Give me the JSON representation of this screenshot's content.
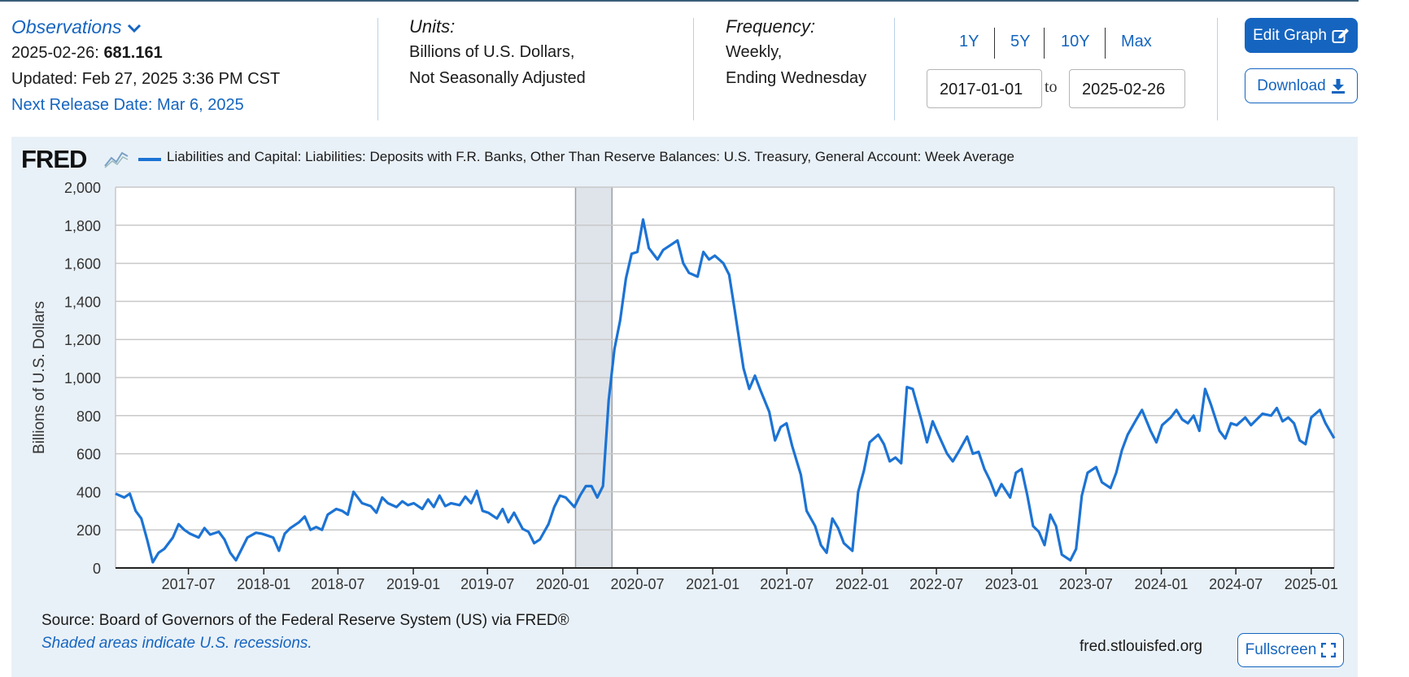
{
  "header": {
    "observations_label": "Observations",
    "obs_date": "2025-02-26:",
    "obs_value": "681.161",
    "updated": "Updated: Feb 27, 2025 3:36 PM CST",
    "next_release": "Next Release Date: Mar 6, 2025",
    "units_label": "Units:",
    "units_line1": "Billions of U.S. Dollars,",
    "units_line2": "Not Seasonally Adjusted",
    "frequency_label": "Frequency:",
    "frequency_line1": "Weekly,",
    "frequency_line2": "Ending Wednesday"
  },
  "range": {
    "buttons": [
      "1Y",
      "5Y",
      "10Y",
      "Max"
    ],
    "start": "2017-01-01",
    "end": "2025-02-26",
    "to_label": "to"
  },
  "actions": {
    "edit_graph": "Edit Graph",
    "download": "Download",
    "fullscreen": "Fullscreen"
  },
  "brand": {
    "logo": "FRED",
    "url": "fred.stlouisfed.org"
  },
  "footer": {
    "source": "Source: Board of Governors of the Federal Reserve System (US) via FRED®",
    "shaded_note": "Shaded areas indicate U.S. recessions."
  },
  "colors": {
    "line": "#1c73d4",
    "link": "#1565c0",
    "panel_bg": "#e9f1f8",
    "recession": "#dfe4ea"
  },
  "chart_data": {
    "type": "line",
    "title": "",
    "xlabel": "",
    "ylabel": "Billions of U.S. Dollars",
    "legend": "Liabilities and Capital: Liabilities: Deposits with F.R. Banks, Other Than Reserve Balances: U.S. Treasury, General Account: Week Average",
    "ylim": [
      0,
      2000
    ],
    "yticks": [
      0,
      200,
      400,
      600,
      800,
      1000,
      1200,
      1400,
      1600,
      1800,
      2000
    ],
    "ytick_labels": [
      "0",
      "200",
      "400",
      "600",
      "800",
      "1,000",
      "1,200",
      "1,400",
      "1,600",
      "1,800",
      "2,000"
    ],
    "xlim": [
      "2017-01-04",
      "2025-02-26"
    ],
    "xticks": [
      "2017-07-01",
      "2018-01-01",
      "2018-07-01",
      "2019-01-01",
      "2019-07-01",
      "2020-01-01",
      "2020-07-01",
      "2021-01-01",
      "2021-07-01",
      "2022-01-01",
      "2022-07-01",
      "2023-01-01",
      "2023-07-01",
      "2024-01-01",
      "2024-07-01",
      "2025-01-01"
    ],
    "xtick_labels": [
      "2017-07",
      "2018-01",
      "2018-07",
      "2019-01",
      "2019-07",
      "2020-01",
      "2020-07",
      "2021-01",
      "2021-07",
      "2022-01",
      "2022-07",
      "2023-01",
      "2023-07",
      "2024-01",
      "2024-07",
      "2025-01"
    ],
    "grid": true,
    "recessions": [
      [
        "2020-02-01",
        "2020-04-30"
      ]
    ],
    "series": [
      {
        "name": "Liabilities and Capital: Liabilities: Deposits with F.R. Banks, Other Than Reserve Balances: U.S. Treasury, General Account: Week Average",
        "points": [
          [
            "2017-01-04",
            390
          ],
          [
            "2017-01-25",
            370
          ],
          [
            "2017-02-08",
            390
          ],
          [
            "2017-02-22",
            300
          ],
          [
            "2017-03-08",
            260
          ],
          [
            "2017-03-22",
            150
          ],
          [
            "2017-04-05",
            30
          ],
          [
            "2017-04-19",
            80
          ],
          [
            "2017-05-03",
            100
          ],
          [
            "2017-05-24",
            160
          ],
          [
            "2017-06-07",
            230
          ],
          [
            "2017-06-21",
            200
          ],
          [
            "2017-07-05",
            180
          ],
          [
            "2017-07-26",
            160
          ],
          [
            "2017-08-09",
            210
          ],
          [
            "2017-08-23",
            175
          ],
          [
            "2017-09-13",
            190
          ],
          [
            "2017-09-27",
            150
          ],
          [
            "2017-10-11",
            80
          ],
          [
            "2017-10-25",
            40
          ],
          [
            "2017-11-08",
            100
          ],
          [
            "2017-11-22",
            160
          ],
          [
            "2017-12-13",
            185
          ],
          [
            "2017-12-27",
            180
          ],
          [
            "2018-01-10",
            170
          ],
          [
            "2018-01-24",
            160
          ],
          [
            "2018-02-07",
            90
          ],
          [
            "2018-02-21",
            180
          ],
          [
            "2018-03-07",
            210
          ],
          [
            "2018-03-28",
            240
          ],
          [
            "2018-04-11",
            270
          ],
          [
            "2018-04-25",
            200
          ],
          [
            "2018-05-09",
            215
          ],
          [
            "2018-05-23",
            200
          ],
          [
            "2018-06-06",
            280
          ],
          [
            "2018-06-27",
            310
          ],
          [
            "2018-07-11",
            300
          ],
          [
            "2018-07-25",
            280
          ],
          [
            "2018-08-08",
            400
          ],
          [
            "2018-08-29",
            340
          ],
          [
            "2018-09-19",
            325
          ],
          [
            "2018-10-03",
            290
          ],
          [
            "2018-10-17",
            370
          ],
          [
            "2018-10-31",
            340
          ],
          [
            "2018-11-21",
            320
          ],
          [
            "2018-12-05",
            350
          ],
          [
            "2018-12-19",
            330
          ],
          [
            "2019-01-02",
            340
          ],
          [
            "2019-01-23",
            310
          ],
          [
            "2019-02-06",
            360
          ],
          [
            "2019-02-20",
            320
          ],
          [
            "2019-03-06",
            380
          ],
          [
            "2019-03-20",
            325
          ],
          [
            "2019-04-03",
            340
          ],
          [
            "2019-04-24",
            330
          ],
          [
            "2019-05-08",
            375
          ],
          [
            "2019-05-22",
            340
          ],
          [
            "2019-06-05",
            405
          ],
          [
            "2019-06-19",
            300
          ],
          [
            "2019-07-03",
            290
          ],
          [
            "2019-07-24",
            260
          ],
          [
            "2019-08-07",
            310
          ],
          [
            "2019-08-21",
            240
          ],
          [
            "2019-09-04",
            290
          ],
          [
            "2019-09-25",
            205
          ],
          [
            "2019-10-09",
            190
          ],
          [
            "2019-10-23",
            130
          ],
          [
            "2019-11-06",
            150
          ],
          [
            "2019-11-27",
            230
          ],
          [
            "2019-12-11",
            320
          ],
          [
            "2019-12-25",
            380
          ],
          [
            "2020-01-08",
            370
          ],
          [
            "2020-01-29",
            320
          ],
          [
            "2020-02-12",
            380
          ],
          [
            "2020-02-26",
            430
          ],
          [
            "2020-03-11",
            430
          ],
          [
            "2020-03-25",
            370
          ],
          [
            "2020-04-08",
            430
          ],
          [
            "2020-04-22",
            880
          ],
          [
            "2020-05-06",
            1150
          ],
          [
            "2020-05-20",
            1300
          ],
          [
            "2020-06-03",
            1520
          ],
          [
            "2020-06-17",
            1650
          ],
          [
            "2020-07-01",
            1660
          ],
          [
            "2020-07-15",
            1830
          ],
          [
            "2020-07-29",
            1680
          ],
          [
            "2020-08-19",
            1620
          ],
          [
            "2020-09-02",
            1670
          ],
          [
            "2020-09-23",
            1700
          ],
          [
            "2020-10-07",
            1720
          ],
          [
            "2020-10-21",
            1600
          ],
          [
            "2020-11-04",
            1550
          ],
          [
            "2020-11-25",
            1530
          ],
          [
            "2020-12-09",
            1660
          ],
          [
            "2020-12-23",
            1620
          ],
          [
            "2021-01-06",
            1640
          ],
          [
            "2021-01-27",
            1600
          ],
          [
            "2021-02-10",
            1540
          ],
          [
            "2021-02-24",
            1350
          ],
          [
            "2021-03-17",
            1050
          ],
          [
            "2021-03-31",
            940
          ],
          [
            "2021-04-14",
            1010
          ],
          [
            "2021-04-28",
            930
          ],
          [
            "2021-05-19",
            820
          ],
          [
            "2021-06-02",
            670
          ],
          [
            "2021-06-16",
            740
          ],
          [
            "2021-06-30",
            760
          ],
          [
            "2021-07-14",
            640
          ],
          [
            "2021-08-04",
            490
          ],
          [
            "2021-08-18",
            300
          ],
          [
            "2021-09-08",
            220
          ],
          [
            "2021-09-22",
            120
          ],
          [
            "2021-10-06",
            80
          ],
          [
            "2021-10-20",
            260
          ],
          [
            "2021-11-03",
            210
          ],
          [
            "2021-11-17",
            130
          ],
          [
            "2021-12-08",
            90
          ],
          [
            "2021-12-22",
            400
          ],
          [
            "2022-01-05",
            510
          ],
          [
            "2022-01-19",
            660
          ],
          [
            "2022-02-09",
            700
          ],
          [
            "2022-02-23",
            650
          ],
          [
            "2022-03-09",
            560
          ],
          [
            "2022-03-23",
            580
          ],
          [
            "2022-04-06",
            550
          ],
          [
            "2022-04-20",
            950
          ],
          [
            "2022-05-04",
            940
          ],
          [
            "2022-05-25",
            780
          ],
          [
            "2022-06-08",
            660
          ],
          [
            "2022-06-22",
            770
          ],
          [
            "2022-07-06",
            700
          ],
          [
            "2022-07-27",
            600
          ],
          [
            "2022-08-10",
            560
          ],
          [
            "2022-08-24",
            610
          ],
          [
            "2022-09-14",
            690
          ],
          [
            "2022-09-28",
            600
          ],
          [
            "2022-10-12",
            610
          ],
          [
            "2022-10-26",
            520
          ],
          [
            "2022-11-09",
            460
          ],
          [
            "2022-11-23",
            380
          ],
          [
            "2022-12-07",
            440
          ],
          [
            "2022-12-28",
            370
          ],
          [
            "2023-01-11",
            500
          ],
          [
            "2023-01-25",
            520
          ],
          [
            "2023-02-08",
            380
          ],
          [
            "2023-02-22",
            220
          ],
          [
            "2023-03-08",
            190
          ],
          [
            "2023-03-22",
            120
          ],
          [
            "2023-04-05",
            280
          ],
          [
            "2023-04-19",
            220
          ],
          [
            "2023-05-03",
            70
          ],
          [
            "2023-05-24",
            40
          ],
          [
            "2023-06-07",
            100
          ],
          [
            "2023-06-21",
            380
          ],
          [
            "2023-07-05",
            500
          ],
          [
            "2023-07-26",
            530
          ],
          [
            "2023-08-09",
            450
          ],
          [
            "2023-08-30",
            420
          ],
          [
            "2023-09-13",
            500
          ],
          [
            "2023-09-27",
            620
          ],
          [
            "2023-10-11",
            700
          ],
          [
            "2023-11-01",
            780
          ],
          [
            "2023-11-15",
            830
          ],
          [
            "2023-12-06",
            720
          ],
          [
            "2023-12-20",
            660
          ],
          [
            "2024-01-03",
            750
          ],
          [
            "2024-01-24",
            790
          ],
          [
            "2024-02-07",
            830
          ],
          [
            "2024-02-21",
            780
          ],
          [
            "2024-03-06",
            760
          ],
          [
            "2024-03-20",
            800
          ],
          [
            "2024-04-03",
            720
          ],
          [
            "2024-04-17",
            940
          ],
          [
            "2024-05-01",
            860
          ],
          [
            "2024-05-22",
            720
          ],
          [
            "2024-06-05",
            680
          ],
          [
            "2024-06-19",
            760
          ],
          [
            "2024-07-03",
            750
          ],
          [
            "2024-07-24",
            790
          ],
          [
            "2024-08-07",
            750
          ],
          [
            "2024-08-21",
            780
          ],
          [
            "2024-09-04",
            810
          ],
          [
            "2024-09-25",
            800
          ],
          [
            "2024-10-09",
            840
          ],
          [
            "2024-10-23",
            770
          ],
          [
            "2024-11-06",
            790
          ],
          [
            "2024-11-20",
            760
          ],
          [
            "2024-12-04",
            670
          ],
          [
            "2024-12-18",
            650
          ],
          [
            "2025-01-01",
            790
          ],
          [
            "2025-01-22",
            830
          ],
          [
            "2025-02-05",
            760
          ],
          [
            "2025-02-26",
            681
          ]
        ]
      }
    ]
  }
}
